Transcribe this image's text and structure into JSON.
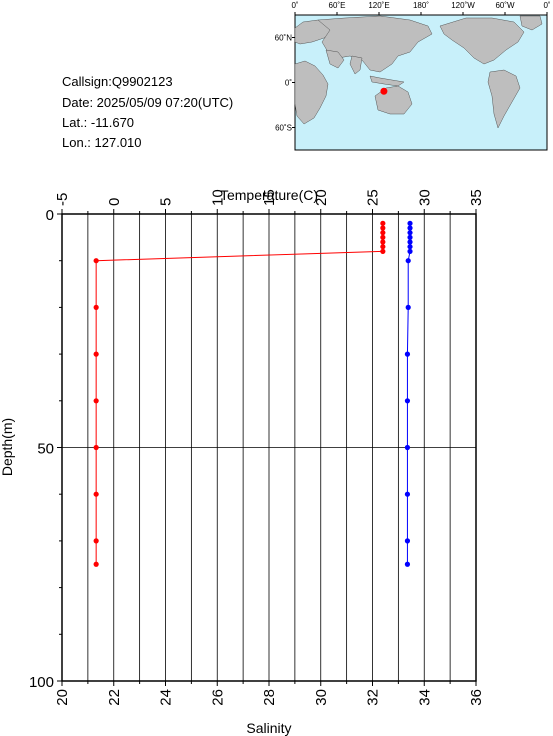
{
  "station": {
    "callsign": "Callsign:Q9902123",
    "date": "Date:  2025/05/09 07:20(UTC)",
    "lat": "Lat.:  -11.670",
    "lon": "Lon.:  127.010"
  },
  "map": {
    "top_ticks": [
      "0˚",
      "60˚E",
      "120˚E",
      "180˚",
      "120˚W",
      "60˚W",
      "0˚"
    ],
    "lat_ticks": [
      "60˚N",
      "0˚",
      "60˚S"
    ],
    "ocean_color": "#c8f0fa",
    "land_color": "#bebebe",
    "marker_color": "#ff0000",
    "marker_lon": 127.01,
    "marker_lat": -11.67
  },
  "chart_data": [
    {
      "type": "line",
      "name": "temperature-profile",
      "xlabel": "Temperature(C)",
      "ylabel": "Depth(m)",
      "xlim": [
        -5,
        35
      ],
      "ylim": [
        0,
        100
      ],
      "x_ticks": [
        "-5",
        "0",
        "5",
        "10",
        "15",
        "20",
        "25",
        "30",
        "35"
      ],
      "y_ticks": [
        "0",
        "50",
        "100"
      ],
      "color": "#ff0000",
      "points": [
        {
          "x": 26.0,
          "y": 2
        },
        {
          "x": 26.0,
          "y": 3
        },
        {
          "x": 26.0,
          "y": 4
        },
        {
          "x": 26.0,
          "y": 5
        },
        {
          "x": 26.0,
          "y": 6
        },
        {
          "x": 26.0,
          "y": 7
        },
        {
          "x": 26.0,
          "y": 8
        },
        {
          "x": -1.7,
          "y": 10
        },
        {
          "x": -1.7,
          "y": 20
        },
        {
          "x": -1.7,
          "y": 30
        },
        {
          "x": -1.7,
          "y": 40
        },
        {
          "x": -1.7,
          "y": 50
        },
        {
          "x": -1.7,
          "y": 60
        },
        {
          "x": -1.7,
          "y": 70
        },
        {
          "x": -1.7,
          "y": 75
        }
      ]
    },
    {
      "type": "line",
      "name": "salinity-profile",
      "xlabel": "Salinity",
      "xlim": [
        20,
        36
      ],
      "x_ticks": [
        "20",
        "22",
        "24",
        "26",
        "28",
        "30",
        "32",
        "34",
        "36"
      ],
      "color": "#0000ff",
      "points": [
        {
          "x": 33.45,
          "y": 2
        },
        {
          "x": 33.45,
          "y": 3
        },
        {
          "x": 33.45,
          "y": 4
        },
        {
          "x": 33.45,
          "y": 5
        },
        {
          "x": 33.45,
          "y": 6
        },
        {
          "x": 33.45,
          "y": 7
        },
        {
          "x": 33.45,
          "y": 8
        },
        {
          "x": 33.38,
          "y": 10
        },
        {
          "x": 33.38,
          "y": 20
        },
        {
          "x": 33.35,
          "y": 30
        },
        {
          "x": 33.35,
          "y": 40
        },
        {
          "x": 33.35,
          "y": 50
        },
        {
          "x": 33.35,
          "y": 60
        },
        {
          "x": 33.35,
          "y": 70
        },
        {
          "x": 33.35,
          "y": 75
        }
      ]
    }
  ]
}
